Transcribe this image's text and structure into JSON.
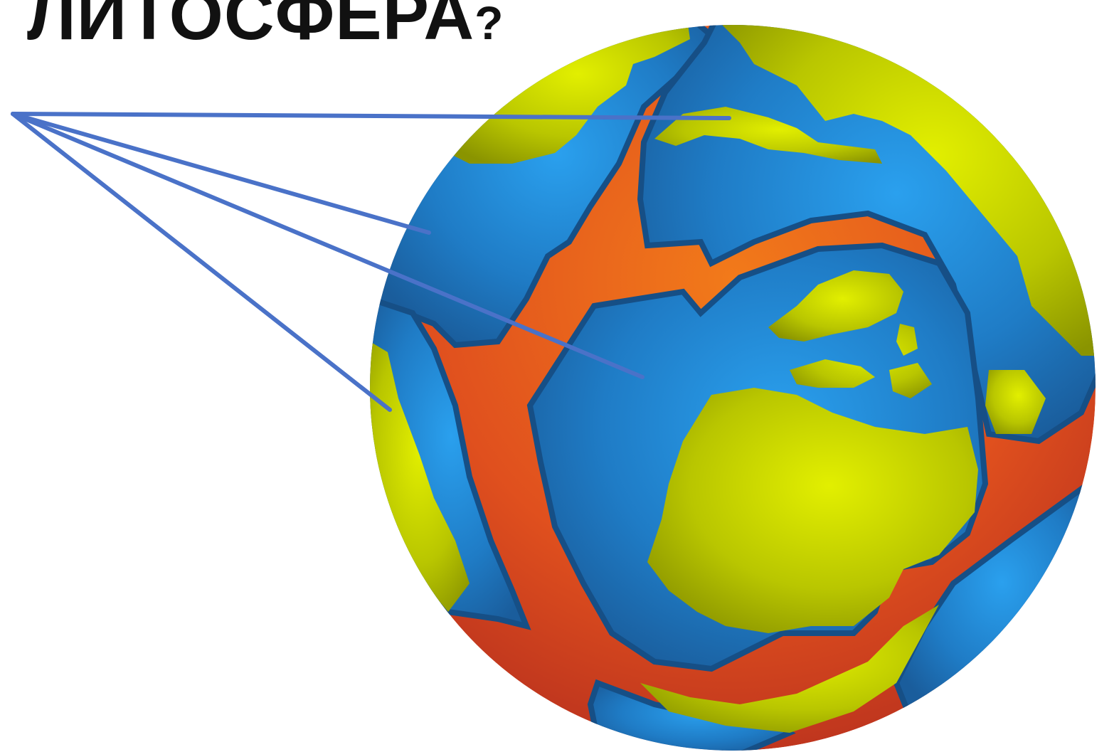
{
  "title": {
    "text": "ЛИТОСФЕРА",
    "punct": "?"
  },
  "colors": {
    "ocean_light": "#2aa0ee",
    "ocean_dark": "#1a5d9c",
    "land_light": "#e2ef00",
    "land_dark": "#8a9400",
    "magma_light": "#f27a1a",
    "magma_dark": "#b8301e",
    "pointer_lines": "#4a72c8"
  }
}
